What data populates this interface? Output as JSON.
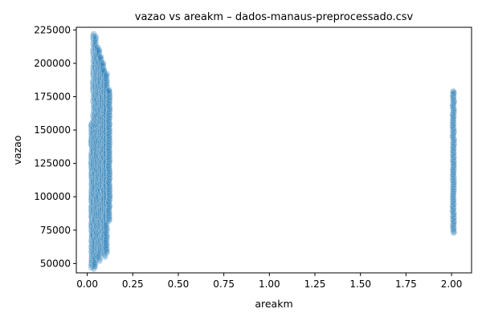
{
  "chart_data": {
    "type": "scatter",
    "title": "vazao vs areakm – dados-manaus-preprocessado.csv",
    "xlabel": "areakm",
    "ylabel": "vazao",
    "xlim": [
      -0.06,
      2.11
    ],
    "ylim": [
      43000,
      227000
    ],
    "x_ticks": [
      0.0,
      0.25,
      0.5,
      0.75,
      1.0,
      1.25,
      1.5,
      1.75,
      2.0
    ],
    "x_tick_labels": [
      "0.00",
      "0.25",
      "0.50",
      "0.75",
      "1.00",
      "1.25",
      "1.50",
      "1.75",
      "2.00"
    ],
    "y_ticks": [
      50000,
      75000,
      100000,
      125000,
      150000,
      175000,
      200000,
      225000
    ],
    "y_tick_labels": [
      "50000",
      "75000",
      "100000",
      "125000",
      "150000",
      "175000",
      "200000",
      "225000"
    ],
    "grid": false,
    "marker_color": "#1f77b4",
    "series": [
      {
        "clusters": [
          {
            "x": 0.025,
            "y_min": 47000,
            "y_max": 155000
          },
          {
            "x": 0.035,
            "y_min": 46000,
            "y_max": 222000
          },
          {
            "x": 0.045,
            "y_min": 48000,
            "y_max": 220000
          },
          {
            "x": 0.055,
            "y_min": 55000,
            "y_max": 212000
          },
          {
            "x": 0.065,
            "y_min": 52000,
            "y_max": 210000
          },
          {
            "x": 0.075,
            "y_min": 58000,
            "y_max": 205000
          },
          {
            "x": 0.085,
            "y_min": 60000,
            "y_max": 200000
          },
          {
            "x": 0.095,
            "y_min": 55000,
            "y_max": 195000
          },
          {
            "x": 0.105,
            "y_min": 58000,
            "y_max": 192000
          },
          {
            "x": 0.12,
            "y_min": 82000,
            "y_max": 180000
          },
          {
            "x": 2.01,
            "y_min": 73000,
            "y_max": 179000
          }
        ]
      }
    ]
  }
}
